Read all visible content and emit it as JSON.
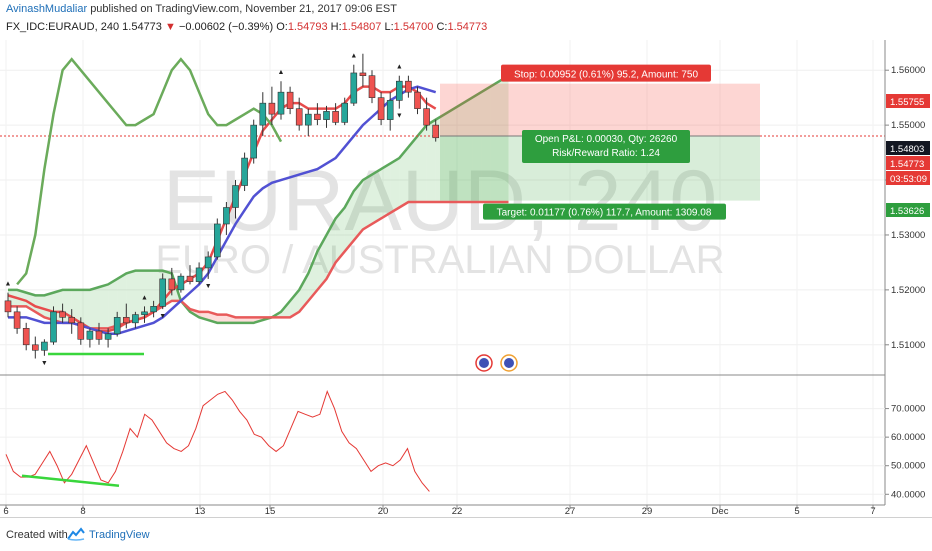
{
  "header": {
    "author": "AvinashMudaliar",
    "published_text": "published on TradingView.com, November 21, 2017 09:06 EST",
    "symbol": "FX_IDC:EURAUD, 240",
    "last_price": "1.54773",
    "change": "−0.00602 (−0.39%)",
    "open_label": "O:",
    "open": "1.54793",
    "high_label": "H:",
    "high": "1.54807",
    "low_label": "L:",
    "low": "1.54700",
    "close_label": "C:",
    "close": "1.54773"
  },
  "watermark": {
    "symbol": "EURAUD, 240",
    "description": "EURO / AUSTRALIAN DOLLAR"
  },
  "position": {
    "stop_label": "Stop: 0.00952 (0.61%) 95.2, Amount: 750",
    "open_pnl_label": "Open P&L: 0.00030, Qty: 26260",
    "rr_label": "Risk/Reward Ratio: 1.24",
    "target_label": "Target: 0.01177 (0.76%) 117.7, Amount: 1309.08",
    "stop_price": 1.55755,
    "entry_price": 1.54803,
    "target_price": 1.53626
  },
  "price_axis": {
    "ticks": [
      "1.56000",
      "1.55000",
      "1.54000",
      "1.53000",
      "1.52000",
      "1.51000"
    ],
    "badges": [
      {
        "text": "1.55755",
        "color": "#e53935"
      },
      {
        "text": "1.54803",
        "color": "#131722"
      },
      {
        "text": "1.54773",
        "color": "#e53935"
      },
      {
        "text": "03:53:09",
        "color": "#e53935"
      },
      {
        "text": "1.53626",
        "color": "#2e9e3e"
      }
    ]
  },
  "time_axis": {
    "labels": [
      "6",
      "8",
      "13",
      "15",
      "20",
      "22",
      "27",
      "29",
      "Dec",
      "5",
      "7"
    ]
  },
  "chart_data": [
    {
      "type": "candlestick",
      "title": "FX_IDC:EURAUD, 240",
      "ylim": [
        1.5045,
        1.5655
      ],
      "candles": [
        [
          1.518,
          1.5195,
          1.515,
          1.516
        ],
        [
          1.516,
          1.517,
          1.512,
          1.513
        ],
        [
          1.513,
          1.514,
          1.509,
          1.51
        ],
        [
          1.51,
          1.5115,
          1.5075,
          1.509
        ],
        [
          1.509,
          1.511,
          1.508,
          1.5105
        ],
        [
          1.5105,
          1.517,
          1.51,
          1.516
        ],
        [
          1.516,
          1.5175,
          1.514,
          1.515
        ],
        [
          1.515,
          1.5165,
          1.512,
          1.514
        ],
        [
          1.514,
          1.515,
          1.51,
          1.511
        ],
        [
          1.511,
          1.513,
          1.5095,
          1.5125
        ],
        [
          1.5125,
          1.514,
          1.51,
          1.511
        ],
        [
          1.511,
          1.513,
          1.5095,
          1.512
        ],
        [
          1.512,
          1.516,
          1.5115,
          1.515
        ],
        [
          1.515,
          1.5175,
          1.513,
          1.514
        ],
        [
          1.514,
          1.516,
          1.513,
          1.5155
        ],
        [
          1.5155,
          1.517,
          1.514,
          1.516
        ],
        [
          1.516,
          1.518,
          1.515,
          1.517
        ],
        [
          1.517,
          1.523,
          1.5165,
          1.522
        ],
        [
          1.522,
          1.524,
          1.519,
          1.52
        ],
        [
          1.52,
          1.523,
          1.5195,
          1.5225
        ],
        [
          1.5225,
          1.5245,
          1.521,
          1.5215
        ],
        [
          1.5215,
          1.525,
          1.521,
          1.524
        ],
        [
          1.524,
          1.527,
          1.522,
          1.526
        ],
        [
          1.526,
          1.533,
          1.5255,
          1.532
        ],
        [
          1.532,
          1.536,
          1.53,
          1.535
        ],
        [
          1.535,
          1.54,
          1.533,
          1.539
        ],
        [
          1.539,
          1.545,
          1.538,
          1.544
        ],
        [
          1.544,
          1.551,
          1.543,
          1.55
        ],
        [
          1.55,
          1.556,
          1.548,
          1.554
        ],
        [
          1.554,
          1.557,
          1.55,
          1.552
        ],
        [
          1.552,
          1.558,
          1.551,
          1.556
        ],
        [
          1.556,
          1.557,
          1.552,
          1.553
        ],
        [
          1.553,
          1.555,
          1.549,
          1.55
        ],
        [
          1.55,
          1.553,
          1.548,
          1.552
        ],
        [
          1.552,
          1.554,
          1.55,
          1.551
        ],
        [
          1.551,
          1.5535,
          1.5495,
          1.5525
        ],
        [
          1.5525,
          1.554,
          1.55,
          1.5505
        ],
        [
          1.5505,
          1.555,
          1.55,
          1.554
        ],
        [
          1.554,
          1.561,
          1.5535,
          1.5595
        ],
        [
          1.5595,
          1.563,
          1.557,
          1.559
        ],
        [
          1.559,
          1.56,
          1.554,
          1.555
        ],
        [
          1.555,
          1.556,
          1.55,
          1.551
        ],
        [
          1.551,
          1.556,
          1.549,
          1.5545
        ],
        [
          1.5545,
          1.559,
          1.553,
          1.558
        ],
        [
          1.558,
          1.559,
          1.555,
          1.556
        ],
        [
          1.556,
          1.557,
          1.552,
          1.553
        ],
        [
          1.553,
          1.555,
          1.549,
          1.55
        ],
        [
          1.55,
          1.551,
          1.547,
          1.5477
        ]
      ],
      "lines": [
        {
          "name": "",
          "color": "#e74c4c",
          "values": [
            1.519,
            1.5185,
            1.518,
            1.517,
            1.5165,
            1.516,
            1.516,
            1.515,
            1.514,
            1.513,
            1.5125,
            1.5125,
            1.513,
            1.514,
            1.5145,
            1.515,
            1.516,
            1.518,
            1.52,
            1.521,
            1.522,
            1.523,
            1.525,
            1.529,
            1.533,
            1.537,
            1.541,
            1.545,
            1.549,
            1.551,
            1.553,
            1.554,
            1.554,
            1.553,
            1.553,
            1.553,
            1.553,
            1.554,
            1.556,
            1.557,
            1.557,
            1.556,
            1.556,
            1.557,
            1.557,
            1.556,
            1.554,
            1.553
          ]
        },
        {
          "name": "",
          "color": "#5151d3",
          "values": [
            1.515,
            1.515,
            1.515,
            1.5145,
            1.514,
            1.514,
            1.514,
            1.514,
            1.5135,
            1.513,
            1.5125,
            1.512,
            1.512,
            1.5125,
            1.513,
            1.5135,
            1.514,
            1.515,
            1.5165,
            1.518,
            1.5195,
            1.521,
            1.523,
            1.526,
            1.529,
            1.532,
            1.5345,
            1.537,
            1.5385,
            1.5395,
            1.54,
            1.5405,
            1.541,
            1.5415,
            1.542,
            1.543,
            1.544,
            1.546,
            1.548,
            1.55,
            1.5515,
            1.553,
            1.5545,
            1.5555,
            1.5565,
            1.557,
            1.5565,
            1.556
          ]
        }
      ],
      "cloud": {
        "span_a": [
          1.52,
          1.52,
          1.5195,
          1.519,
          1.519,
          1.5195,
          1.52,
          1.52,
          1.52,
          1.52,
          1.5205,
          1.521,
          1.522,
          1.523,
          1.5235,
          1.5235,
          1.5235,
          1.5235,
          1.523,
          1.518,
          1.516,
          1.515,
          1.5145,
          1.514,
          1.514,
          1.514,
          1.514,
          1.514,
          1.5145,
          1.515,
          1.516,
          1.518,
          1.52,
          1.523,
          1.527,
          1.53,
          1.533,
          1.535,
          1.538,
          1.54,
          1.541,
          1.542,
          1.543,
          1.544,
          1.546,
          1.548,
          1.55,
          1.551,
          1.552,
          1.553,
          1.554,
          1.555,
          1.556,
          1.557,
          1.558,
          1.559
        ],
        "span_b": [
          1.517,
          1.517,
          1.517,
          1.516,
          1.515,
          1.5145,
          1.514,
          1.514,
          1.5135,
          1.513,
          1.513,
          1.513,
          1.5135,
          1.514,
          1.5145,
          1.515,
          1.516,
          1.517,
          1.518,
          1.518,
          1.5165,
          1.516,
          1.516,
          1.5155,
          1.5155,
          1.515,
          1.515,
          1.515,
          1.515,
          1.515,
          1.515,
          1.515,
          1.516,
          1.518,
          1.52,
          1.522,
          1.525,
          1.527,
          1.529,
          1.531,
          1.532,
          1.533,
          1.534,
          1.535,
          1.536,
          1.536,
          1.536,
          1.536,
          1.536,
          1.536,
          1.536,
          1.536,
          1.536,
          1.536,
          1.536,
          1.536
        ]
      },
      "lagging_span": [
        1.521,
        1.523,
        1.53,
        1.542,
        1.552,
        1.56,
        1.562,
        1.56,
        1.558,
        1.556,
        1.554,
        1.552,
        1.55,
        1.55,
        1.551,
        1.552,
        1.556,
        1.56,
        1.562,
        1.56,
        1.556,
        1.552,
        1.55,
        1.55,
        1.551,
        1.552,
        1.553,
        1.552,
        1.55,
        1.547
      ],
      "annotations": [
        "Stop: 0.00952 (0.61%) 95.2, Amount: 750",
        "Open P&L: 0.00030, Qty: 26260",
        "Risk/Reward Ratio: 1.24",
        "Target: 0.01177 (0.76%) 117.7, Amount: 1309.08"
      ]
    },
    {
      "type": "line",
      "title": "",
      "ylim": [
        38,
        80
      ],
      "y_ticks": [
        "70.0000",
        "60.0000",
        "50.0000",
        "40.0000"
      ],
      "series": [
        {
          "name": "",
          "color": "#e53935",
          "values": [
            54,
            48,
            46,
            46,
            47,
            51,
            55,
            50,
            44,
            47,
            52,
            57,
            51,
            45,
            44,
            48,
            55,
            63,
            60,
            68,
            66,
            62,
            58,
            56,
            55,
            57,
            63,
            71,
            73,
            75,
            76,
            73,
            69,
            66,
            61,
            60,
            57,
            55,
            57,
            63,
            69,
            68,
            67,
            68,
            76,
            70,
            62,
            58,
            56,
            52,
            48,
            50,
            51,
            50,
            52,
            56,
            48,
            44,
            41
          ]
        }
      ]
    }
  ]
}
